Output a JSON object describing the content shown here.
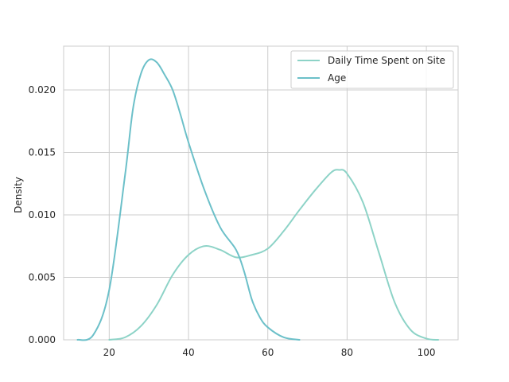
{
  "chart_data": {
    "type": "line",
    "title": "",
    "xlabel": "",
    "ylabel": "Density",
    "xlim": [
      8.5,
      108
    ],
    "ylim": [
      0,
      0.0235
    ],
    "x_ticks": [
      20,
      40,
      60,
      80,
      100
    ],
    "y_ticks": [
      0.0,
      0.005,
      0.01,
      0.015,
      0.02
    ],
    "y_tick_format": 3,
    "grid": true,
    "legend_position": "top-right",
    "series": [
      {
        "name": "Daily Time Spent on Site",
        "color": "#8dd3c7",
        "points": [
          [
            20,
            0.0
          ],
          [
            24,
            0.0002
          ],
          [
            28,
            0.0011
          ],
          [
            32,
            0.0028
          ],
          [
            36,
            0.0052
          ],
          [
            40,
            0.0068
          ],
          [
            44,
            0.0075
          ],
          [
            48,
            0.0072
          ],
          [
            52,
            0.0066
          ],
          [
            56,
            0.0068
          ],
          [
            60,
            0.0073
          ],
          [
            64,
            0.0087
          ],
          [
            68,
            0.0104
          ],
          [
            72,
            0.012
          ],
          [
            76,
            0.0134
          ],
          [
            78,
            0.0136
          ],
          [
            80,
            0.0133
          ],
          [
            84,
            0.011
          ],
          [
            88,
            0.007
          ],
          [
            92,
            0.003
          ],
          [
            96,
            0.0008
          ],
          [
            100,
            0.0001
          ],
          [
            103,
            0.0
          ]
        ]
      },
      {
        "name": "Age",
        "color": "#6cc0c9",
        "points": [
          [
            12,
            0.0
          ],
          [
            16,
            0.0004
          ],
          [
            20,
            0.004
          ],
          [
            24,
            0.0132
          ],
          [
            26,
            0.0185
          ],
          [
            28,
            0.0213
          ],
          [
            30,
            0.0224
          ],
          [
            32,
            0.0222
          ],
          [
            34,
            0.0212
          ],
          [
            36,
            0.02
          ],
          [
            38,
            0.018
          ],
          [
            40,
            0.0158
          ],
          [
            44,
            0.012
          ],
          [
            48,
            0.009
          ],
          [
            52,
            0.0072
          ],
          [
            54,
            0.0055
          ],
          [
            56,
            0.0032
          ],
          [
            58,
            0.0018
          ],
          [
            60,
            0.001
          ],
          [
            64,
            0.0002
          ],
          [
            68,
            0.0
          ]
        ]
      }
    ]
  }
}
